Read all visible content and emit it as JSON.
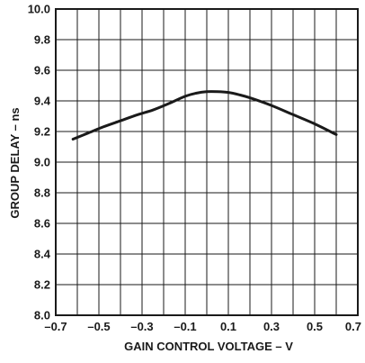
{
  "chart_data": {
    "type": "line",
    "title": "",
    "xlabel": "GAIN CONTROL VOLTAGE – V",
    "ylabel": "GROUP DELAY – ns",
    "xlim": [
      -0.7,
      0.7
    ],
    "ylim": [
      8.0,
      10.0
    ],
    "x_ticks": [
      -0.7,
      -0.5,
      -0.3,
      -0.1,
      0.1,
      0.3,
      0.5,
      0.7
    ],
    "x_tick_labels": [
      "–0.7",
      "–0.5",
      "–0.3",
      "–0.1",
      "0.1",
      "0.3",
      "0.5",
      "0.7"
    ],
    "y_ticks": [
      8.0,
      8.2,
      8.4,
      8.6,
      8.8,
      9.0,
      9.2,
      9.4,
      9.6,
      9.8,
      10.0
    ],
    "y_tick_labels": [
      "8.0",
      "8.2",
      "8.4",
      "8.6",
      "8.8",
      "9.0",
      "9.2",
      "9.4",
      "9.6",
      "9.8",
      "10.0"
    ],
    "grid": true,
    "minor_x_grid_step": 0.1,
    "colors": {
      "line": "#1a1a1a",
      "grid": "#1a1a1a",
      "background": "#ffffff"
    },
    "series": [
      {
        "x": [
          -0.62,
          -0.55,
          -0.48,
          -0.4,
          -0.32,
          -0.25,
          -0.18,
          -0.1,
          -0.05,
          0.0,
          0.05,
          0.1,
          0.15,
          0.2,
          0.3,
          0.4,
          0.5,
          0.6
        ],
        "values": [
          9.15,
          9.19,
          9.23,
          9.27,
          9.31,
          9.34,
          9.38,
          9.43,
          9.45,
          9.46,
          9.46,
          9.455,
          9.44,
          9.42,
          9.37,
          9.31,
          9.25,
          9.18
        ]
      }
    ]
  }
}
